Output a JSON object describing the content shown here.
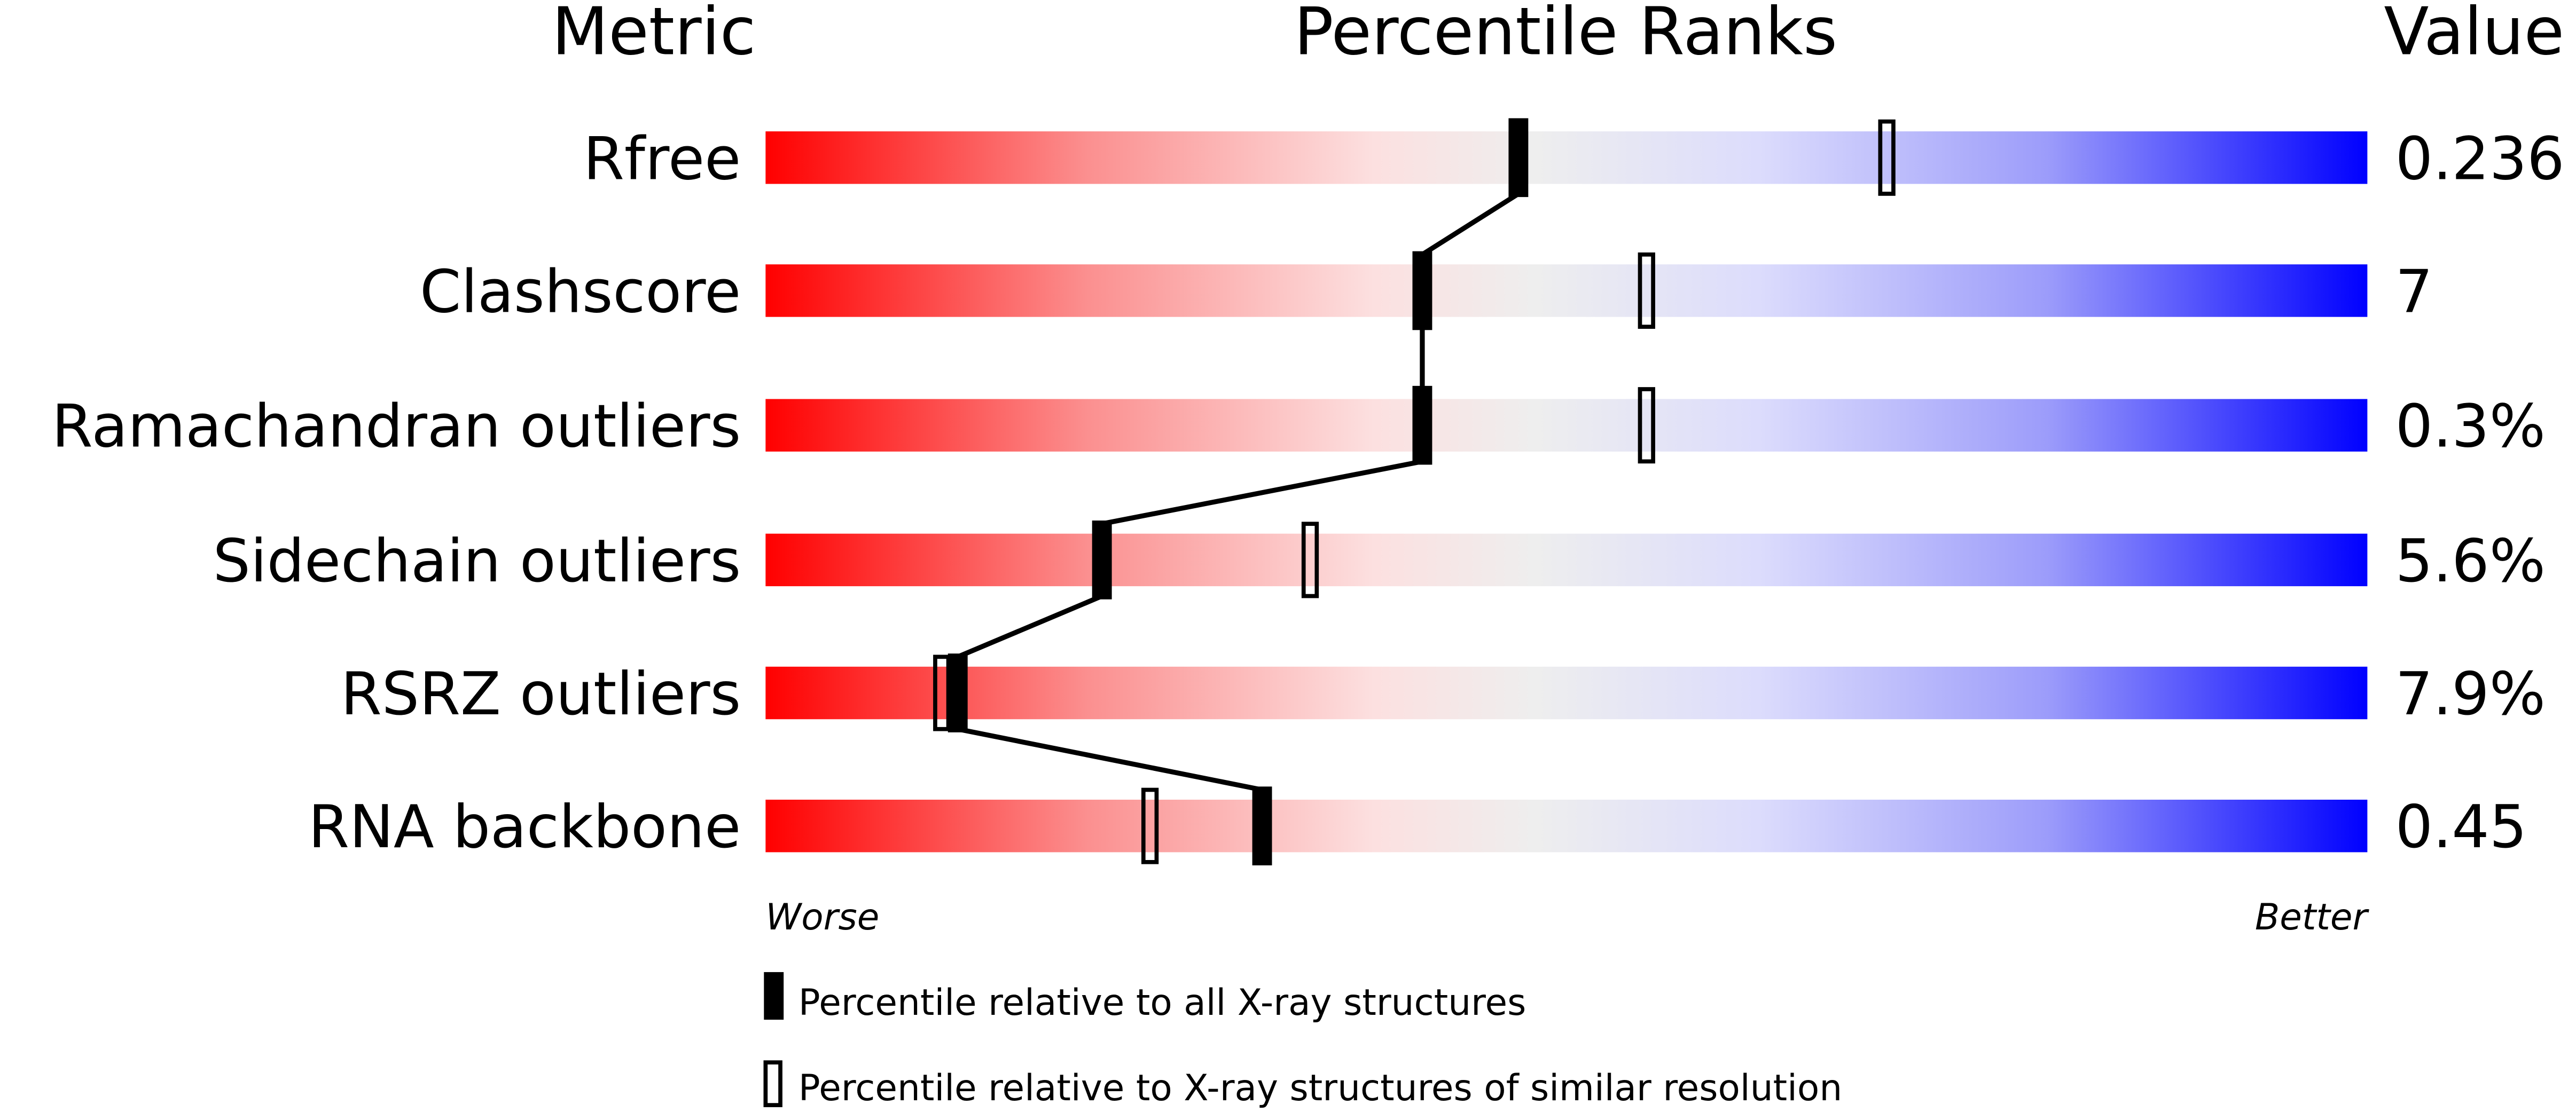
{
  "chart_data": {
    "type": "percentile-bar",
    "headers": {
      "metric": "Metric",
      "ranks": "Percentile Ranks",
      "value": "Value"
    },
    "xlim": [
      0,
      100
    ],
    "rows": [
      {
        "metric": "Rfree",
        "value": "0.236",
        "percentile_all": 47,
        "percentile_similar": 70
      },
      {
        "metric": "Clashscore",
        "value": "7",
        "percentile_all": 41,
        "percentile_similar": 55
      },
      {
        "metric": "Ramachandran outliers",
        "value": "0.3%",
        "percentile_all": 41,
        "percentile_similar": 55
      },
      {
        "metric": "Sidechain outliers",
        "value": "5.6%",
        "percentile_all": 21,
        "percentile_similar": 34
      },
      {
        "metric": "RSRZ outliers",
        "value": "7.9%",
        "percentile_all": 12,
        "percentile_similar": 11
      },
      {
        "metric": "RNA backbone",
        "value": "0.45",
        "percentile_all": 31,
        "percentile_similar": 24
      }
    ],
    "axis": {
      "left": "Worse",
      "right": "Better"
    },
    "legend": {
      "all": "Percentile relative to all X-ray structures",
      "similar": "Percentile relative to X-ray structures of similar resolution"
    },
    "colors": {
      "worse": "#ff0000",
      "middle": "#eeeeee",
      "better": "#0000ff",
      "marker": "#000000"
    }
  }
}
